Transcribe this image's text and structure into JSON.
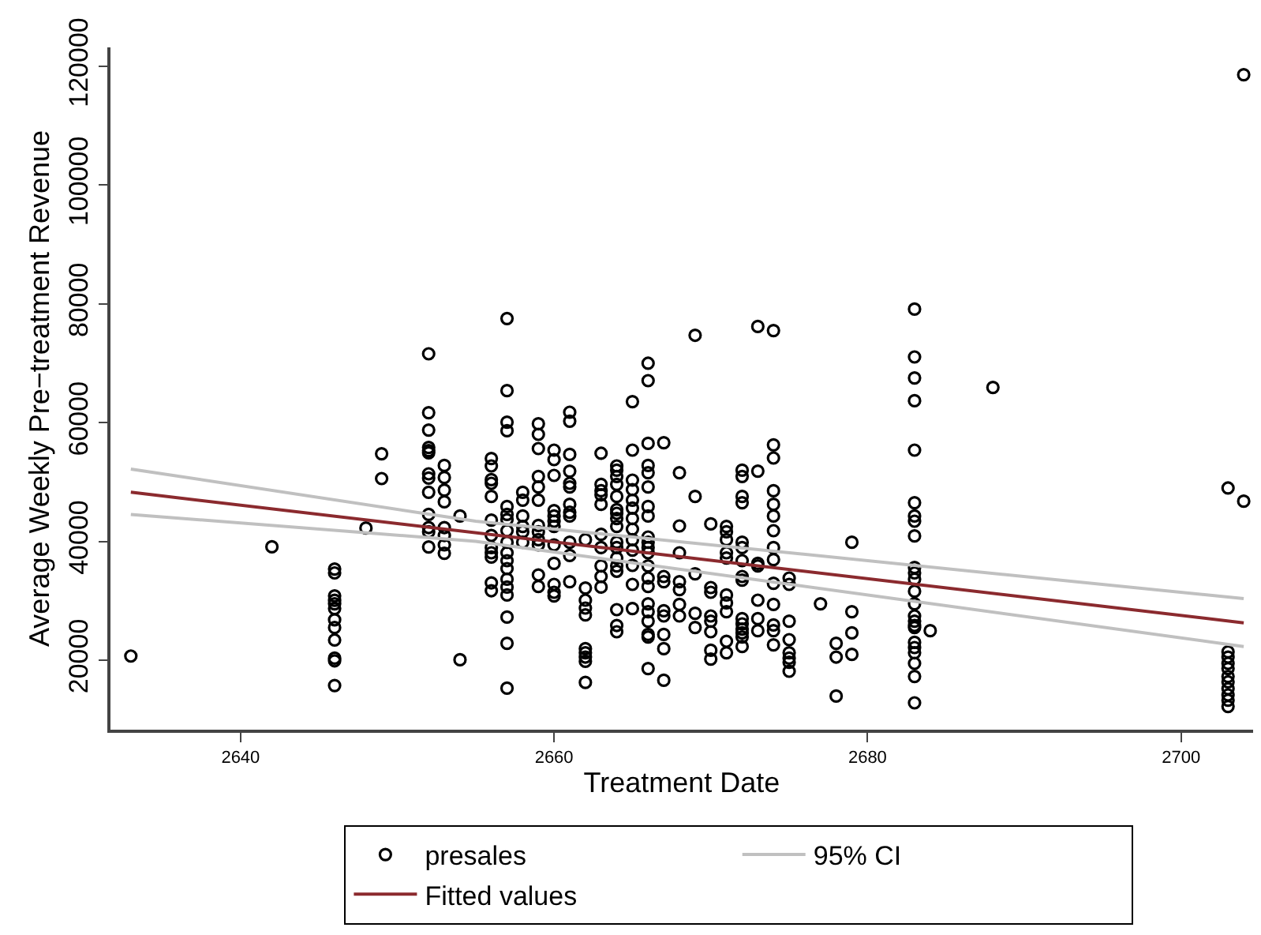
{
  "chart_data": {
    "type": "scatter",
    "xlabel": "Treatment Date",
    "ylabel": "Average Weekly Pre−treatment Revenue",
    "xlim": [
      2631.7,
      2704.6
    ],
    "ylim": [
      8300,
      123200
    ],
    "xticks": [
      2640,
      2660,
      2680,
      2700
    ],
    "yticks": [
      20000,
      40000,
      60000,
      80000,
      100000,
      120000
    ],
    "legend": "bottom",
    "marker": "circle",
    "series": [
      {
        "name": "presales",
        "color": "#000000",
        "x": [
          2633,
          2642,
          2646,
          2646,
          2646,
          2646,
          2646,
          2646,
          2646,
          2646,
          2646,
          2646,
          2646,
          2646,
          2648,
          2649,
          2649,
          2652,
          2652,
          2652,
          2652,
          2652,
          2652,
          2652,
          2652,
          2652,
          2652,
          2652,
          2652,
          2652,
          2653,
          2653,
          2653,
          2653,
          2653,
          2653,
          2653,
          2653,
          2654,
          2654,
          2656,
          2656,
          2656,
          2656,
          2656,
          2656,
          2656,
          2656,
          2656,
          2656,
          2656,
          2656,
          2657,
          2657,
          2657,
          2657,
          2657,
          2657,
          2657,
          2657,
          2657,
          2657,
          2657,
          2657,
          2657,
          2657,
          2657,
          2657,
          2657,
          2657,
          2658,
          2658,
          2658,
          2658,
          2658,
          2658,
          2659,
          2659,
          2659,
          2659,
          2659,
          2659,
          2659,
          2659,
          2659,
          2659,
          2659,
          2659,
          2660,
          2660,
          2660,
          2660,
          2660,
          2660,
          2660,
          2660,
          2660,
          2660,
          2660,
          2660,
          2661,
          2661,
          2661,
          2661,
          2661,
          2661,
          2661,
          2661,
          2661,
          2661,
          2661,
          2661,
          2662,
          2662,
          2662,
          2662,
          2662,
          2662,
          2662,
          2662,
          2662,
          2662,
          2663,
          2663,
          2663,
          2663,
          2663,
          2663,
          2663,
          2663,
          2663,
          2663,
          2664,
          2664,
          2664,
          2664,
          2664,
          2664,
          2664,
          2664,
          2664,
          2664,
          2664,
          2664,
          2664,
          2664,
          2664,
          2664,
          2664,
          2665,
          2665,
          2665,
          2665,
          2665,
          2665,
          2665,
          2665,
          2665,
          2665,
          2665,
          2665,
          2665,
          2666,
          2666,
          2666,
          2666,
          2666,
          2666,
          2666,
          2666,
          2666,
          2666,
          2666,
          2666,
          2666,
          2666,
          2666,
          2666,
          2666,
          2666,
          2666,
          2666,
          2666,
          2667,
          2667,
          2667,
          2667,
          2667,
          2667,
          2667,
          2667,
          2668,
          2668,
          2668,
          2668,
          2668,
          2668,
          2668,
          2669,
          2669,
          2669,
          2669,
          2669,
          2670,
          2670,
          2670,
          2670,
          2670,
          2670,
          2670,
          2670,
          2671,
          2671,
          2671,
          2671,
          2671,
          2671,
          2671,
          2671,
          2671,
          2671,
          2672,
          2672,
          2672,
          2672,
          2672,
          2672,
          2672,
          2672,
          2672,
          2672,
          2672,
          2672,
          2672,
          2672,
          2672,
          2673,
          2673,
          2673,
          2673,
          2673,
          2673,
          2673,
          2674,
          2674,
          2674,
          2674,
          2674,
          2674,
          2674,
          2674,
          2674,
          2674,
          2674,
          2674,
          2674,
          2674,
          2675,
          2675,
          2675,
          2675,
          2675,
          2675,
          2675,
          2675,
          2677,
          2678,
          2678,
          2678,
          2679,
          2679,
          2679,
          2679,
          2683,
          2683,
          2683,
          2683,
          2683,
          2683,
          2683,
          2683,
          2683,
          2683,
          2683,
          2683,
          2683,
          2683,
          2683,
          2683,
          2683,
          2683,
          2683,
          2683,
          2683,
          2683,
          2683,
          2683,
          2684,
          2688,
          2703,
          2703,
          2703,
          2703,
          2703,
          2703,
          2703,
          2703,
          2703,
          2703,
          2703,
          2704,
          2704
        ],
        "values": [
          20700,
          39100,
          35350,
          34700,
          30830,
          30100,
          29500,
          28700,
          26800,
          25500,
          23400,
          20350,
          19900,
          15740,
          42260,
          54770,
          50590,
          71600,
          61680,
          58760,
          55830,
          55300,
          54930,
          51390,
          50670,
          48280,
          44550,
          42340,
          41630,
          39070,
          52800,
          50770,
          48650,
          46680,
          42340,
          41010,
          39420,
          38010,
          44290,
          20080,
          53970,
          52720,
          50400,
          49790,
          47580,
          43590,
          41010,
          38970,
          38090,
          37370,
          33030,
          31700,
          77540,
          65400,
          60090,
          58650,
          45880,
          44550,
          43670,
          41810,
          39860,
          38090,
          36760,
          35430,
          33650,
          32320,
          30990,
          27260,
          22850,
          15290,
          48280,
          46950,
          44290,
          42530,
          41630,
          39860,
          59820,
          58040,
          55640,
          50940,
          49180,
          46950,
          42690,
          41630,
          40300,
          39420,
          34360,
          32420,
          55380,
          53780,
          51120,
          45190,
          44290,
          43410,
          42530,
          39420,
          36310,
          32770,
          31440,
          30830,
          61760,
          60250,
          54660,
          51840,
          49790,
          49180,
          46250,
          44920,
          44290,
          39860,
          37640,
          33220,
          40300,
          32160,
          30110,
          28780,
          27630,
          21940,
          21250,
          20530,
          19820,
          16260,
          54850,
          49610,
          48540,
          47850,
          46250,
          41200,
          38970,
          35880,
          34100,
          32320,
          52720,
          52000,
          50940,
          49610,
          47580,
          45360,
          44740,
          43860,
          42530,
          39860,
          38970,
          37210,
          35880,
          34990,
          28510,
          25850,
          24790,
          63540,
          55380,
          50320,
          48730,
          46950,
          45620,
          43860,
          42080,
          40300,
          38540,
          35960,
          32770,
          28700,
          70010,
          67080,
          56520,
          52800,
          51570,
          49180,
          45880,
          44290,
          40750,
          39860,
          38970,
          38090,
          35880,
          33830,
          32420,
          29500,
          28170,
          26570,
          24340,
          23910,
          18590,
          56630,
          34100,
          33220,
          28330,
          27450,
          24340,
          21940,
          16620,
          51570,
          42610,
          38090,
          33220,
          31890,
          29390,
          27450,
          74720,
          47580,
          34550,
          27900,
          25510,
          42960,
          32240,
          31440,
          27450,
          26570,
          24790,
          21680,
          20190,
          42530,
          41630,
          40300,
          38090,
          37210,
          30990,
          29660,
          28170,
          23190,
          21250,
          52000,
          50940,
          47580,
          46520,
          39860,
          38970,
          36760,
          34100,
          33490,
          27000,
          26120,
          25240,
          24600,
          23910,
          22310,
          76200,
          51840,
          36310,
          35880,
          30110,
          27000,
          24970,
          75510,
          56260,
          54050,
          48540,
          46250,
          44290,
          41810,
          38970,
          36940,
          32950,
          29390,
          25930,
          24970,
          22580,
          33830,
          32770,
          26570,
          23460,
          21250,
          20350,
          19650,
          18140,
          29500,
          22850,
          20530,
          13960,
          39860,
          28170,
          24600,
          20980,
          79130,
          71070,
          67530,
          63700,
          55380,
          46520,
          44290,
          43410,
          40930,
          35610,
          34700,
          33650,
          31620,
          29500,
          27450,
          26570,
          25850,
          25510,
          23010,
          22130,
          21250,
          19470,
          17260,
          12820,
          24970,
          65940,
          49000,
          21410,
          20530,
          19470,
          18590,
          17260,
          16350,
          15210,
          14150,
          13260,
          12210,
          46780,
          118600
        ]
      },
      {
        "name": "95% CI",
        "type": "line",
        "color": "#c0c0c0",
        "marker": "none",
        "line_style": "solid",
        "x": [
          2633,
          2655,
          2704
        ],
        "values": [
          52190,
          43410,
          30370
        ]
      },
      {
        "name": "Fitted values",
        "type": "line",
        "color": "#8b2a2e",
        "marker": "none",
        "line_style": "solid",
        "x": [
          2633,
          2704
        ],
        "values": [
          48280,
          26300
        ]
      },
      {
        "type": "line",
        "color": "#c0c0c0",
        "marker": "none",
        "line_style": "solid",
        "x": [
          2633,
          2655,
          2704
        ],
        "values": [
          44550,
          40030,
          22310
        ]
      }
    ]
  }
}
